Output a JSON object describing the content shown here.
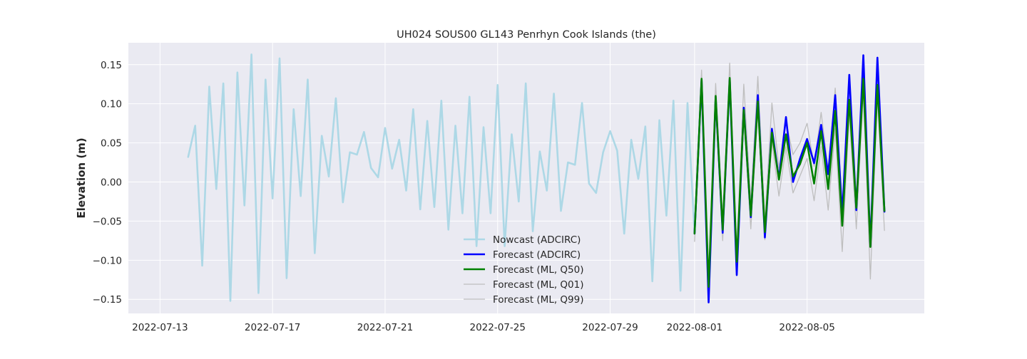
{
  "chart_data": {
    "type": "line",
    "title": "UH024 SOUS00 GL143 Penrhyn Cook Islands (the)",
    "xlabel": "",
    "ylabel": "Elevation (m)",
    "xlim": [
      "2022-07-11T21:00",
      "2022-08-09T04:00"
    ],
    "ylim": [
      -0.168,
      0.178
    ],
    "x_tick_labels": [
      "2022-07-13",
      "2022-07-17",
      "2022-07-21",
      "2022-07-25",
      "2022-07-29",
      "2022-08-01",
      "2022-08-05"
    ],
    "y_ticks": [
      -0.15,
      -0.1,
      -0.05,
      0.0,
      0.05,
      0.1,
      0.15
    ],
    "y_tick_labels": [
      "−0.15",
      "−0.10",
      "−0.05",
      "0.00",
      "0.05",
      "0.10",
      "0.15"
    ],
    "grid": true,
    "legend_position": "lower-center",
    "colors": {
      "background": "#eaeaf2",
      "grid": "#ffffff",
      "text": "#262626"
    },
    "series": [
      {
        "name": "Nowcast (ADCIRC)",
        "color": "#add8e6",
        "width": 2.6,
        "x": [
          "2022-07-14T00:00",
          "2022-07-14T06:00",
          "2022-07-14T12:00",
          "2022-07-14T18:00",
          "2022-07-15T00:00",
          "2022-07-15T06:00",
          "2022-07-15T12:00",
          "2022-07-15T18:00",
          "2022-07-16T00:00",
          "2022-07-16T06:00",
          "2022-07-16T12:00",
          "2022-07-16T18:00",
          "2022-07-17T00:00",
          "2022-07-17T06:00",
          "2022-07-17T12:00",
          "2022-07-17T18:00",
          "2022-07-18T00:00",
          "2022-07-18T06:00",
          "2022-07-18T12:00",
          "2022-07-18T18:00",
          "2022-07-19T00:00",
          "2022-07-19T06:00",
          "2022-07-19T12:00",
          "2022-07-19T18:00",
          "2022-07-20T00:00",
          "2022-07-20T06:00",
          "2022-07-20T12:00",
          "2022-07-20T18:00",
          "2022-07-21T00:00",
          "2022-07-21T06:00",
          "2022-07-21T12:00",
          "2022-07-21T18:00",
          "2022-07-22T00:00",
          "2022-07-22T06:00",
          "2022-07-22T12:00",
          "2022-07-22T18:00",
          "2022-07-23T00:00",
          "2022-07-23T06:00",
          "2022-07-23T12:00",
          "2022-07-23T18:00",
          "2022-07-24T00:00",
          "2022-07-24T06:00",
          "2022-07-24T12:00",
          "2022-07-24T18:00",
          "2022-07-25T00:00",
          "2022-07-25T06:00",
          "2022-07-25T12:00",
          "2022-07-25T18:00",
          "2022-07-26T00:00",
          "2022-07-26T06:00",
          "2022-07-26T12:00",
          "2022-07-26T18:00",
          "2022-07-27T00:00",
          "2022-07-27T06:00",
          "2022-07-27T12:00",
          "2022-07-27T18:00",
          "2022-07-28T00:00",
          "2022-07-28T06:00",
          "2022-07-28T12:00",
          "2022-07-28T18:00",
          "2022-07-29T00:00",
          "2022-07-29T06:00",
          "2022-07-29T12:00",
          "2022-07-29T18:00",
          "2022-07-30T00:00",
          "2022-07-30T06:00",
          "2022-07-30T12:00",
          "2022-07-30T18:00",
          "2022-07-31T00:00",
          "2022-07-31T06:00",
          "2022-07-31T12:00",
          "2022-07-31T18:00",
          "2022-08-01T00:00"
        ],
        "y": [
          0.032,
          0.072,
          -0.107,
          0.122,
          -0.009,
          0.126,
          -0.152,
          0.14,
          -0.03,
          0.163,
          -0.142,
          0.131,
          -0.021,
          0.158,
          -0.123,
          0.093,
          -0.018,
          0.131,
          -0.091,
          0.059,
          0.007,
          0.107,
          -0.026,
          0.038,
          0.035,
          0.064,
          0.018,
          0.006,
          0.069,
          0.017,
          0.054,
          -0.011,
          0.093,
          -0.035,
          0.078,
          -0.032,
          0.104,
          -0.061,
          0.072,
          -0.04,
          0.109,
          -0.082,
          0.07,
          -0.04,
          0.124,
          -0.082,
          0.061,
          -0.025,
          0.126,
          -0.063,
          0.039,
          -0.011,
          0.113,
          -0.037,
          0.025,
          0.022,
          0.101,
          -0.002,
          -0.014,
          0.038,
          0.065,
          0.04,
          -0.066,
          0.054,
          0.004,
          0.071,
          -0.127,
          0.079,
          -0.043,
          0.104,
          -0.139,
          0.101,
          -0.065
        ]
      },
      {
        "name": "Forecast (ADCIRC)",
        "color": "#0000ff",
        "width": 2.6,
        "x": [
          "2022-08-01T00:00",
          "2022-08-01T06:00",
          "2022-08-01T12:00",
          "2022-08-01T18:00",
          "2022-08-02T00:00",
          "2022-08-02T06:00",
          "2022-08-02T12:00",
          "2022-08-02T18:00",
          "2022-08-03T00:00",
          "2022-08-03T06:00",
          "2022-08-03T12:00",
          "2022-08-03T18:00",
          "2022-08-04T00:00",
          "2022-08-04T06:00",
          "2022-08-04T12:00",
          "2022-08-04T18:00",
          "2022-08-05T00:00",
          "2022-08-05T06:00",
          "2022-08-05T12:00",
          "2022-08-05T18:00",
          "2022-08-06T00:00",
          "2022-08-06T06:00",
          "2022-08-06T12:00",
          "2022-08-06T18:00",
          "2022-08-07T00:00",
          "2022-08-07T06:00",
          "2022-08-07T12:00",
          "2022-08-07T18:00"
        ],
        "y": [
          -0.066,
          0.13,
          -0.154,
          0.108,
          -0.065,
          0.131,
          -0.119,
          0.095,
          -0.045,
          0.111,
          -0.071,
          0.068,
          0.004,
          0.083,
          0.0,
          0.03,
          0.055,
          0.024,
          0.073,
          0.01,
          0.111,
          -0.042,
          0.137,
          -0.036,
          0.162,
          -0.082,
          0.159,
          -0.038
        ]
      },
      {
        "name": "Forecast (ML, Q50)",
        "color": "#008000",
        "width": 2.6,
        "x": [
          "2022-08-01T00:00",
          "2022-08-01T06:00",
          "2022-08-01T12:00",
          "2022-08-01T18:00",
          "2022-08-02T00:00",
          "2022-08-02T06:00",
          "2022-08-02T12:00",
          "2022-08-02T18:00",
          "2022-08-03T00:00",
          "2022-08-03T06:00",
          "2022-08-03T12:00",
          "2022-08-03T18:00",
          "2022-08-04T00:00",
          "2022-08-04T06:00",
          "2022-08-04T12:00",
          "2022-08-04T18:00",
          "2022-08-05T00:00",
          "2022-08-05T06:00",
          "2022-08-05T12:00",
          "2022-08-05T18:00",
          "2022-08-06T00:00",
          "2022-08-06T06:00",
          "2022-08-06T12:00",
          "2022-08-06T18:00",
          "2022-08-07T00:00",
          "2022-08-07T06:00",
          "2022-08-07T12:00",
          "2022-08-07T18:00"
        ],
        "y": [
          -0.066,
          0.132,
          -0.134,
          0.11,
          -0.061,
          0.133,
          -0.102,
          0.092,
          -0.043,
          0.103,
          -0.064,
          0.063,
          0.003,
          0.061,
          0.007,
          0.023,
          0.05,
          -0.002,
          0.065,
          -0.009,
          0.091,
          -0.056,
          0.105,
          -0.033,
          0.132,
          -0.083,
          0.124,
          -0.037
        ]
      },
      {
        "name": "Forecast (ML, Q01)",
        "color": "#bebebe",
        "width": 1.3,
        "x": [
          "2022-08-01T00:00",
          "2022-08-01T06:00",
          "2022-08-01T12:00",
          "2022-08-01T18:00",
          "2022-08-02T00:00",
          "2022-08-02T06:00",
          "2022-08-02T12:00",
          "2022-08-02T18:00",
          "2022-08-03T00:00",
          "2022-08-03T06:00",
          "2022-08-03T12:00",
          "2022-08-03T18:00",
          "2022-08-04T00:00",
          "2022-08-04T06:00",
          "2022-08-04T12:00",
          "2022-08-04T18:00",
          "2022-08-05T00:00",
          "2022-08-05T06:00",
          "2022-08-05T12:00",
          "2022-08-05T18:00",
          "2022-08-06T00:00",
          "2022-08-06T06:00",
          "2022-08-06T12:00",
          "2022-08-06T18:00",
          "2022-08-07T00:00",
          "2022-08-07T06:00",
          "2022-08-07T12:00",
          "2022-08-07T18:00"
        ],
        "y": [
          -0.076,
          0.125,
          -0.146,
          0.1,
          -0.075,
          0.127,
          -0.11,
          0.082,
          -0.06,
          0.092,
          -0.074,
          0.051,
          -0.018,
          0.045,
          -0.014,
          0.008,
          0.03,
          -0.024,
          0.045,
          -0.036,
          0.068,
          -0.089,
          0.088,
          -0.06,
          0.115,
          -0.124,
          0.11,
          -0.062
        ]
      },
      {
        "name": "Forecast (ML, Q99)",
        "color": "#bebebe",
        "width": 1.3,
        "x": [
          "2022-08-01T00:00",
          "2022-08-01T06:00",
          "2022-08-01T12:00",
          "2022-08-01T18:00",
          "2022-08-02T00:00",
          "2022-08-02T06:00",
          "2022-08-02T12:00",
          "2022-08-02T18:00",
          "2022-08-03T00:00",
          "2022-08-03T06:00",
          "2022-08-03T12:00",
          "2022-08-03T18:00",
          "2022-08-04T00:00",
          "2022-08-04T06:00",
          "2022-08-04T12:00",
          "2022-08-04T18:00",
          "2022-08-05T00:00",
          "2022-08-05T06:00",
          "2022-08-05T12:00",
          "2022-08-05T18:00",
          "2022-08-06T00:00",
          "2022-08-06T06:00",
          "2022-08-06T12:00",
          "2022-08-06T18:00",
          "2022-08-07T00:00",
          "2022-08-07T06:00",
          "2022-08-07T12:00",
          "2022-08-07T18:00"
        ],
        "y": [
          -0.058,
          0.143,
          -0.125,
          0.126,
          -0.05,
          0.152,
          -0.091,
          0.125,
          -0.025,
          0.135,
          -0.05,
          0.101,
          0.018,
          0.078,
          0.035,
          0.05,
          0.075,
          0.02,
          0.089,
          0.015,
          0.12,
          -0.03,
          0.128,
          -0.018,
          0.147,
          -0.06,
          0.135,
          -0.022
        ]
      }
    ]
  }
}
